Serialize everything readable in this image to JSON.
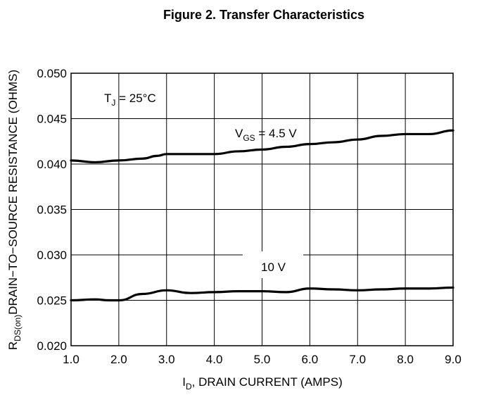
{
  "chart_data": {
    "type": "line",
    "title": "Figure 2. Transfer Characteristics",
    "xlabel": {
      "main": "I",
      "sub": "D",
      "rest": ", DRAIN CURRENT (AMPS)"
    },
    "ylabel": {
      "main": "R",
      "sub": "DS(on)",
      "rest": "DRAIN−TO−SOURCE RESISTANCE (OHMS)"
    },
    "xlim": [
      1.0,
      9.0
    ],
    "ylim": [
      0.02,
      0.05
    ],
    "x_ticks": [
      1.0,
      2.0,
      3.0,
      4.0,
      5.0,
      6.0,
      7.0,
      8.0,
      9.0
    ],
    "x_tick_labels": [
      "1.0",
      "2.0",
      "3.0",
      "4.0",
      "5.0",
      "6.0",
      "7.0",
      "8.0",
      "9.0"
    ],
    "y_ticks": [
      0.02,
      0.025,
      0.03,
      0.035,
      0.04,
      0.045,
      0.05
    ],
    "y_tick_labels": [
      "0.020",
      "0.025",
      "0.030",
      "0.035",
      "0.040",
      "0.045",
      "0.050"
    ],
    "grid": true,
    "annotations": {
      "temperature": {
        "main": "T",
        "sub": "J",
        "rest": " = 25°C"
      },
      "vgs_45": {
        "main": "V",
        "sub": "GS",
        "rest": " = 4.5 V"
      },
      "vgs_10": {
        "text": "10 V"
      }
    },
    "series": [
      {
        "x": [
          1.0,
          1.5,
          2.0,
          2.5,
          2.8,
          3.0,
          3.5,
          4.0,
          4.5,
          5.0,
          5.5,
          6.0,
          6.5,
          7.0,
          7.5,
          8.0,
          8.5,
          9.0
        ],
        "values": [
          0.0404,
          0.0402,
          0.0404,
          0.0406,
          0.0409,
          0.0411,
          0.0411,
          0.0411,
          0.0414,
          0.0416,
          0.0419,
          0.0422,
          0.0424,
          0.0427,
          0.0431,
          0.0433,
          0.0433,
          0.0437
        ]
      },
      {
        "x": [
          1.0,
          1.5,
          1.8,
          2.0,
          2.5,
          3.0,
          3.5,
          4.0,
          4.5,
          5.0,
          5.5,
          6.0,
          6.5,
          7.0,
          7.5,
          8.0,
          8.5,
          9.0
        ],
        "values": [
          0.025,
          0.0251,
          0.025,
          0.025,
          0.0257,
          0.0261,
          0.0258,
          0.0259,
          0.026,
          0.026,
          0.0259,
          0.0263,
          0.0262,
          0.0261,
          0.0262,
          0.0263,
          0.0263,
          0.0264
        ]
      }
    ]
  }
}
